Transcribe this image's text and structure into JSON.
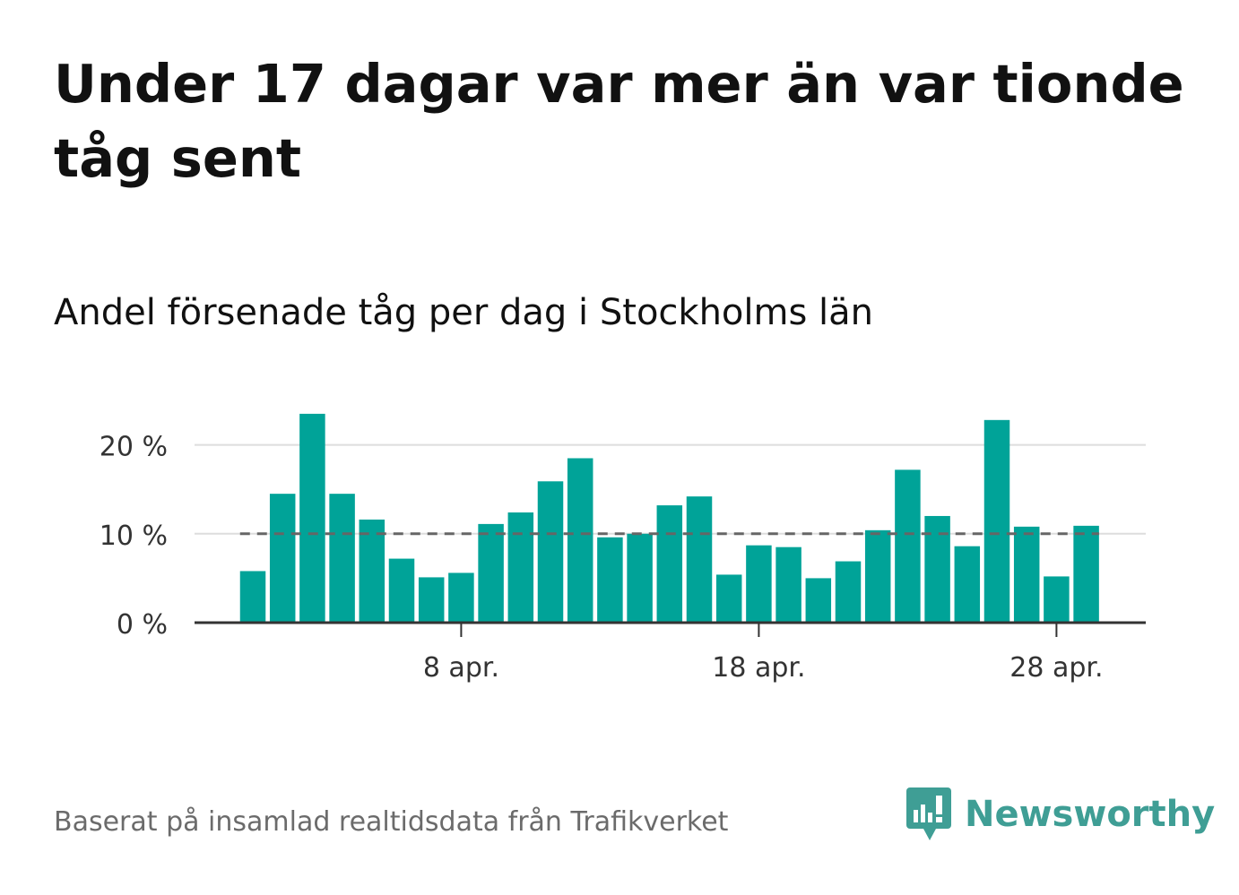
{
  "header": {
    "title": "Under 17 dagar var mer än var tionde tåg sent",
    "subtitle": "Andel försenade tåg per dag i Stockholms län"
  },
  "footer": {
    "source": "Baserat på insamlad realtidsdata från Trafikverket",
    "brand": "Newsworthy"
  },
  "colors": {
    "bar": "#00a398",
    "reference_line": "#666666",
    "grid": "#dddddd",
    "axis": "#333333",
    "brand": "#3f9e95"
  },
  "chart_data": {
    "type": "bar",
    "x_unit": "day of April",
    "x": [
      1,
      2,
      3,
      4,
      5,
      6,
      7,
      8,
      9,
      10,
      11,
      12,
      13,
      14,
      15,
      16,
      17,
      18,
      19,
      20,
      21,
      22,
      23,
      24,
      25,
      26,
      27,
      28,
      29
    ],
    "values": [
      5.8,
      14.5,
      23.5,
      14.5,
      11.6,
      7.2,
      5.1,
      5.6,
      11.1,
      12.4,
      15.9,
      18.5,
      9.6,
      10.0,
      13.2,
      14.2,
      5.4,
      8.7,
      8.5,
      5.0,
      6.9,
      10.4,
      17.2,
      12.0,
      8.6,
      22.8,
      10.8,
      5.2,
      10.9
    ],
    "reference_line": 10,
    "ylim": [
      0,
      25
    ],
    "yticks": [
      0,
      10,
      20
    ],
    "ytick_labels": [
      "0 %",
      "10 %",
      "20 %"
    ],
    "xticks": [
      8,
      18,
      28
    ],
    "xtick_labels": [
      "8 apr.",
      "18 apr.",
      "28 apr."
    ],
    "grid": true,
    "xlabel": "",
    "ylabel": ""
  }
}
